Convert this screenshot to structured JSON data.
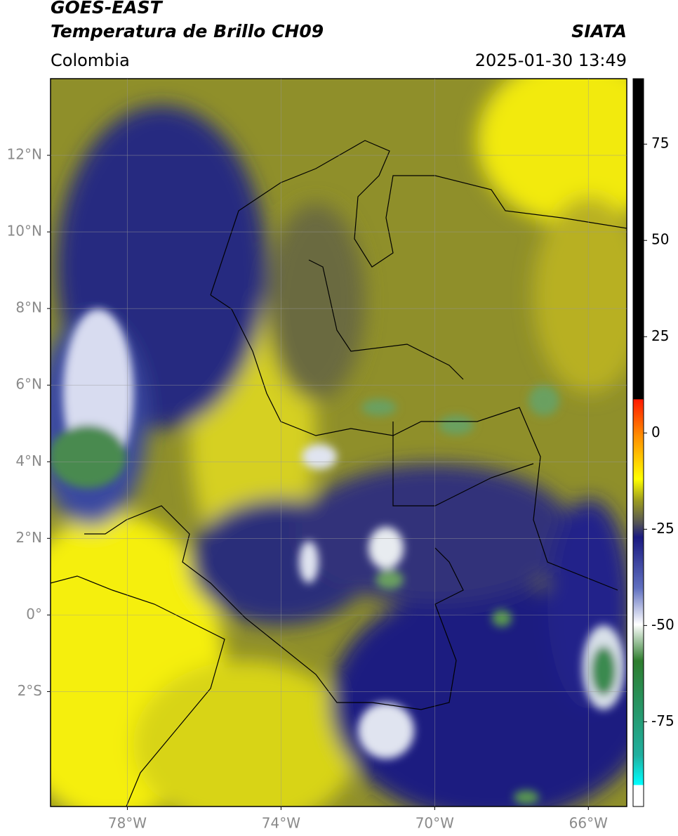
{
  "header": {
    "title": "GOES-EAST",
    "subtitle": "Temperatura de Brillo CH09",
    "source": "SIATA",
    "region": "Colombia",
    "datetime": "2025-01-30 13:49"
  },
  "map": {
    "lon_range": [
      -80,
      -65
    ],
    "lat_range": [
      -5,
      14
    ],
    "lat_ticks": [
      {
        "value": 12,
        "label": "12°N"
      },
      {
        "value": 10,
        "label": "10°N"
      },
      {
        "value": 8,
        "label": "8°N"
      },
      {
        "value": 6,
        "label": "6°N"
      },
      {
        "value": 4,
        "label": "4°N"
      },
      {
        "value": 2,
        "label": "2°N"
      },
      {
        "value": 0,
        "label": "0°"
      },
      {
        "value": -2,
        "label": "2°S"
      }
    ],
    "lon_ticks": [
      {
        "value": -78,
        "label": "78°W"
      },
      {
        "value": -74,
        "label": "74°W"
      },
      {
        "value": -70,
        "label": "70°W"
      },
      {
        "value": -66,
        "label": "66°W"
      }
    ]
  },
  "colorbar": {
    "range": [
      -97,
      92
    ],
    "ticks": [
      75,
      50,
      25,
      0,
      -25,
      -50,
      -75
    ]
  }
}
